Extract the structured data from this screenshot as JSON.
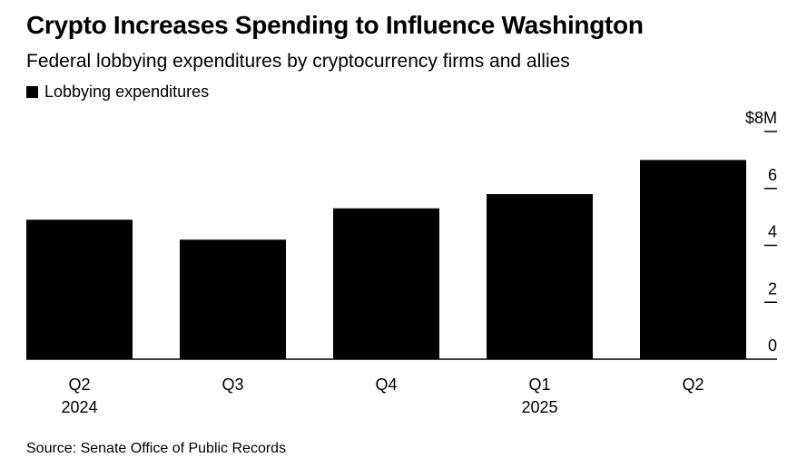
{
  "colors": {
    "bar": "#000000",
    "axis": "#000000",
    "text": "#000000"
  },
  "chart_data": {
    "type": "bar",
    "title": "Crypto Increases Spending to Influence Washington",
    "subtitle": "Federal lobbying expenditures by cryptocurrency firms and allies",
    "legend": [
      "Lobbying expenditures"
    ],
    "legend_position": "top-left",
    "categories": [
      "Q2",
      "Q3",
      "Q4",
      "Q1",
      "Q2"
    ],
    "category_years": [
      "2024",
      "",
      "",
      "2025",
      ""
    ],
    "series": [
      {
        "name": "Lobbying expenditures",
        "values": [
          4.9,
          4.2,
          5.3,
          5.8,
          7.0
        ]
      }
    ],
    "y_ticks": [
      0,
      2,
      4,
      6,
      8
    ],
    "y_tick_labels": [
      "0",
      "2",
      "4",
      "6",
      "$8M"
    ],
    "ylim": [
      0,
      8
    ],
    "ylabel": "",
    "xlabel": "",
    "y_axis_side": "right",
    "grid": false,
    "source": "Source: Senate Office of Public Records"
  }
}
